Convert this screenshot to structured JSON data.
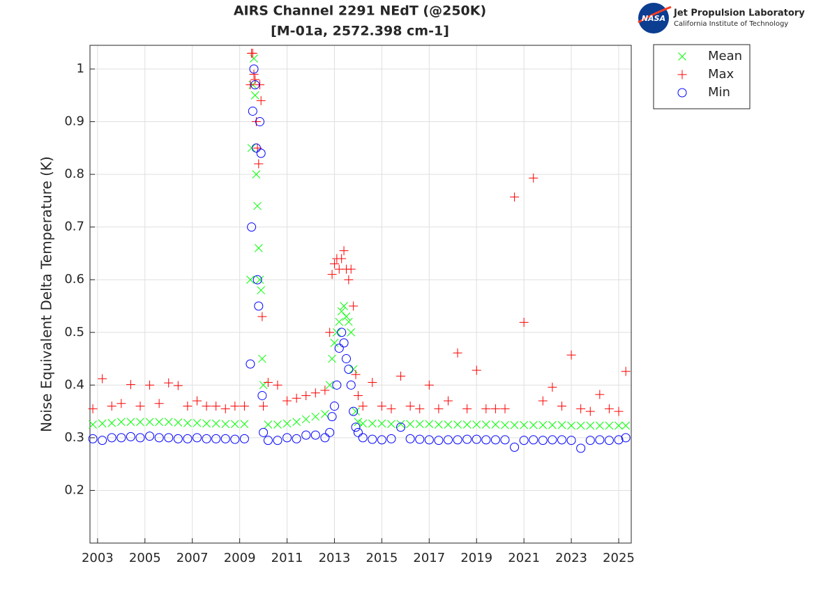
{
  "chart_data": {
    "type": "scatter",
    "title": "AIRS Channel 2291 NEdT (@250K)",
    "subtitle": "[M-01a, 2572.398 cm-1]",
    "y_label": "Noise Equivalent Delta Temperature (K)",
    "x": [
      2002.8,
      2003.2,
      2003.6,
      2004.0,
      2004.4,
      2004.8,
      2005.2,
      2005.6,
      2006.0,
      2006.4,
      2006.8,
      2007.2,
      2007.6,
      2008.0,
      2008.4,
      2008.8,
      2009.2,
      2009.45,
      2009.5,
      2009.55,
      2009.6,
      2009.65,
      2009.7,
      2009.75,
      2009.8,
      2009.85,
      2009.9,
      2009.95,
      2010.0,
      2010.2,
      2010.6,
      2011.0,
      2011.4,
      2011.8,
      2012.2,
      2012.6,
      2012.8,
      2012.9,
      2013.0,
      2013.1,
      2013.2,
      2013.3,
      2013.4,
      2013.5,
      2013.6,
      2013.7,
      2013.8,
      2013.9,
      2014.0,
      2014.2,
      2014.6,
      2015.0,
      2015.4,
      2015.8,
      2016.2,
      2016.6,
      2017.0,
      2017.4,
      2017.8,
      2018.2,
      2018.6,
      2019.0,
      2019.4,
      2019.8,
      2020.2,
      2020.6,
      2021.0,
      2021.4,
      2021.8,
      2022.2,
      2022.6,
      2023.0,
      2023.4,
      2023.8,
      2024.2,
      2024.6,
      2025.0,
      2025.3
    ],
    "series": [
      {
        "name": "Mean",
        "color": "#00ff00",
        "marker": "x",
        "values": [
          0.325,
          0.327,
          0.328,
          0.33,
          0.33,
          0.33,
          0.33,
          0.33,
          0.33,
          0.329,
          0.328,
          0.328,
          0.327,
          0.327,
          0.326,
          0.326,
          0.326,
          0.6,
          0.85,
          0.97,
          1.02,
          0.95,
          0.8,
          0.74,
          0.66,
          0.6,
          0.58,
          0.45,
          0.4,
          0.325,
          0.325,
          0.327,
          0.33,
          0.335,
          0.34,
          0.345,
          0.4,
          0.45,
          0.48,
          0.5,
          0.52,
          0.54,
          0.55,
          0.53,
          0.52,
          0.5,
          0.43,
          0.35,
          0.33,
          0.327,
          0.327,
          0.327,
          0.326,
          0.326,
          0.326,
          0.326,
          0.326,
          0.325,
          0.325,
          0.325,
          0.325,
          0.325,
          0.325,
          0.325,
          0.324,
          0.324,
          0.324,
          0.324,
          0.324,
          0.324,
          0.324,
          0.323,
          0.323,
          0.323,
          0.323,
          0.323,
          0.323,
          0.323
        ]
      },
      {
        "name": "Max",
        "color": "#ff0000",
        "marker": "+",
        "values": [
          0.355,
          0.412,
          0.36,
          0.365,
          0.401,
          0.36,
          0.4,
          0.365,
          0.404,
          0.399,
          0.36,
          0.37,
          0.36,
          0.36,
          0.355,
          0.36,
          0.36,
          0.97,
          1.03,
          1.03,
          0.99,
          0.98,
          0.9,
          0.85,
          0.82,
          0.97,
          0.94,
          0.53,
          0.36,
          0.405,
          0.4,
          0.37,
          0.375,
          0.38,
          0.385,
          0.39,
          0.5,
          0.61,
          0.63,
          0.64,
          0.62,
          0.64,
          0.655,
          0.62,
          0.6,
          0.62,
          0.55,
          0.42,
          0.38,
          0.36,
          0.405,
          0.36,
          0.355,
          0.417,
          0.36,
          0.355,
          0.4,
          0.355,
          0.37,
          0.461,
          0.355,
          0.428,
          0.355,
          0.355,
          0.355,
          0.757,
          0.519,
          0.793,
          0.37,
          0.396,
          0.36,
          0.457,
          0.355,
          0.35,
          0.382,
          0.355,
          0.35,
          0.426
        ]
      },
      {
        "name": "Min",
        "color": "#0000ff",
        "marker": "o",
        "values": [
          0.298,
          0.295,
          0.3,
          0.3,
          0.302,
          0.3,
          0.303,
          0.3,
          0.3,
          0.298,
          0.298,
          0.3,
          0.298,
          0.298,
          0.298,
          0.297,
          0.298,
          0.44,
          0.7,
          0.92,
          1.0,
          0.97,
          0.85,
          0.6,
          0.55,
          0.9,
          0.84,
          0.38,
          0.31,
          0.295,
          0.295,
          0.3,
          0.298,
          0.305,
          0.305,
          0.3,
          0.31,
          0.34,
          0.36,
          0.4,
          0.47,
          0.5,
          0.48,
          0.45,
          0.43,
          0.4,
          0.35,
          0.32,
          0.31,
          0.3,
          0.297,
          0.296,
          0.298,
          0.32,
          0.298,
          0.297,
          0.296,
          0.295,
          0.296,
          0.296,
          0.297,
          0.297,
          0.296,
          0.296,
          0.296,
          0.282,
          0.295,
          0.296,
          0.295,
          0.296,
          0.296,
          0.295,
          0.28,
          0.295,
          0.296,
          0.295,
          0.296,
          0.3
        ]
      }
    ],
    "xlim": [
      2002.68,
      2025.53
    ],
    "xticks": [
      2003,
      2005,
      2007,
      2009,
      2011,
      2013,
      2015,
      2017,
      2019,
      2021,
      2023,
      2025
    ],
    "ylim": [
      0.1,
      1.045
    ],
    "yticks": [
      0.2,
      0.3,
      0.4,
      0.5,
      0.6,
      0.7,
      0.8,
      0.9,
      1
    ],
    "grid": true,
    "legend": "outside-top-right"
  },
  "logo": {
    "badge": "NASA",
    "name": "Jet Propulsion Laboratory",
    "institution": "California Institute of Technology"
  }
}
